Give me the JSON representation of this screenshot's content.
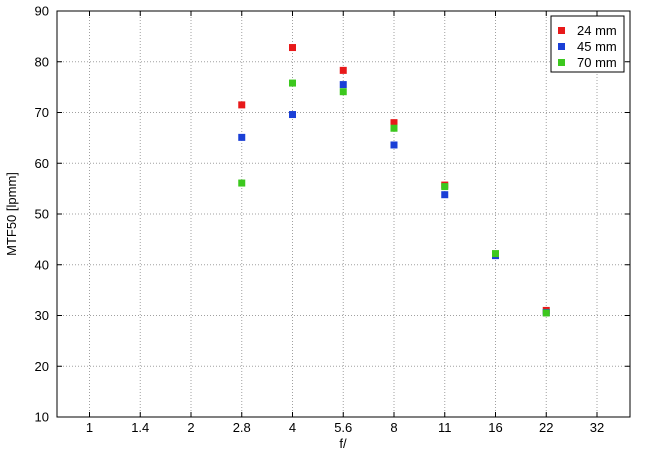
{
  "chart_data": {
    "type": "scatter",
    "xlabel": "f/",
    "ylabel": "MTF50 [lpmm]",
    "x_ticks": [
      "1",
      "1.4",
      "2",
      "2.8",
      "4",
      "5.6",
      "8",
      "11",
      "16",
      "22",
      "32"
    ],
    "ylim": [
      10,
      90
    ],
    "y_ticks": [
      10,
      20,
      30,
      40,
      50,
      60,
      70,
      80,
      90
    ],
    "grid": true,
    "legend_position": "top-right",
    "series": [
      {
        "name": "24 mm",
        "color": "#e8191a",
        "points": [
          {
            "x": "2.8",
            "y": 71.5
          },
          {
            "x": "4",
            "y": 82.8
          },
          {
            "x": "5.6",
            "y": 78.3
          },
          {
            "x": "8",
            "y": 68.0
          },
          {
            "x": "11",
            "y": 55.7
          },
          {
            "x": "16",
            "y": 42.0
          },
          {
            "x": "22",
            "y": 31.0
          }
        ]
      },
      {
        "name": "45 mm",
        "color": "#1a3fd6",
        "points": [
          {
            "x": "2.8",
            "y": 65.1
          },
          {
            "x": "4",
            "y": 69.6
          },
          {
            "x": "5.6",
            "y": 75.5
          },
          {
            "x": "8",
            "y": 63.6
          },
          {
            "x": "11",
            "y": 53.8
          },
          {
            "x": "16",
            "y": 41.8
          },
          {
            "x": "22",
            "y": 30.6
          }
        ]
      },
      {
        "name": "70 mm",
        "color": "#3cc81e",
        "points": [
          {
            "x": "2.8",
            "y": 56.1
          },
          {
            "x": "4",
            "y": 75.8
          },
          {
            "x": "5.6",
            "y": 74.1
          },
          {
            "x": "8",
            "y": 66.9
          },
          {
            "x": "11",
            "y": 55.4
          },
          {
            "x": "16",
            "y": 42.2
          },
          {
            "x": "22",
            "y": 30.5
          }
        ]
      }
    ]
  }
}
